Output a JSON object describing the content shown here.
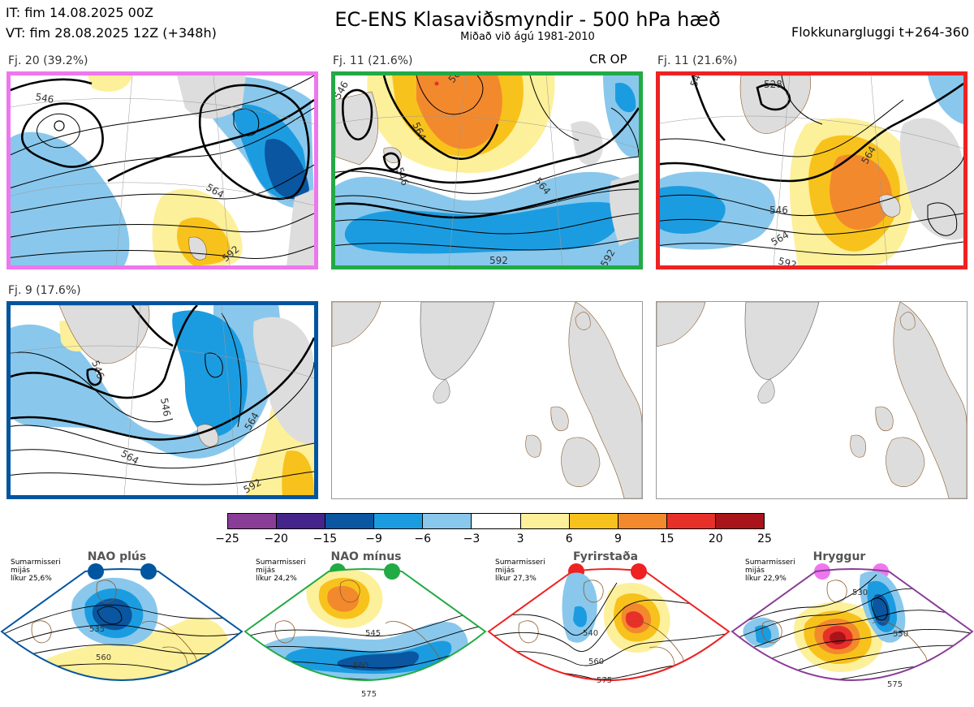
{
  "header": {
    "it": "IT: fim 14.08.2025 00Z",
    "vt": "VT: fim 28.08.2025 12Z  (+348h)",
    "title": "EC-ENS Klasaviðsmyndir - 500 hPa hæð",
    "subtitle": "Miðað við ágú 1981-2010",
    "window": "Flokkunargluggi t+264-360"
  },
  "panels": [
    {
      "label": "Fj. 20 (39.2%)",
      "border_color": "#ee77ee"
    },
    {
      "label": "Fj. 11 (21.6%)",
      "border_color": "#22aa44",
      "tag": "CR OP"
    },
    {
      "label": "Fj. 11 (21.6%)",
      "border_color": "#ee2222"
    },
    {
      "label": "Fj. 9 (17.6%)",
      "border_color": "#0055a0"
    },
    {
      "label": ""
    },
    {
      "label": ""
    }
  ],
  "contour_labels": {
    "p1": [
      "546",
      "564",
      "592"
    ],
    "p2": [
      "546",
      "546",
      "564",
      "564",
      "564",
      "592",
      "592"
    ],
    "p3": [
      "528",
      "546",
      "546",
      "564",
      "564",
      "592"
    ],
    "p4": [
      "546",
      "546",
      "564",
      "564",
      "592"
    ]
  },
  "colorbar": {
    "ticks": [
      "−25",
      "−20",
      "−15",
      "−9",
      "−6",
      "−3",
      "3",
      "6",
      "9",
      "15",
      "20",
      "25"
    ],
    "colors": [
      "#8a3d97",
      "#45258c",
      "#0a56a0",
      "#1c9ce0",
      "#89c8ec",
      "#ffffff",
      "#fdf09a",
      "#f8c21c",
      "#f3892d",
      "#e8302a",
      "#a8141a"
    ]
  },
  "regimes": [
    {
      "name": "NAO plús",
      "note": "Sumarmisseri\nmijás\nlíkur 25,6%",
      "color": "#0055a0",
      "labels": [
        "535",
        "560"
      ]
    },
    {
      "name": "NAO mínus",
      "note": "Sumarmisseri\nmijás\nlíkur 24,2%",
      "color": "#22aa44",
      "labels": [
        "545",
        "560",
        "575"
      ]
    },
    {
      "name": "Fyrirstaða",
      "note": "Sumarmisseri\nmijás\nlíkur 27,3%",
      "color": "#ee2222",
      "labels": [
        "540",
        "560",
        "575"
      ]
    },
    {
      "name": "Hryggur",
      "note": "Sumarmisseri\nmijás\nlíkur 22,9%",
      "color": "#ee77ee",
      "border": "#8a3d97",
      "labels": [
        "530",
        "550",
        "575"
      ]
    }
  ]
}
